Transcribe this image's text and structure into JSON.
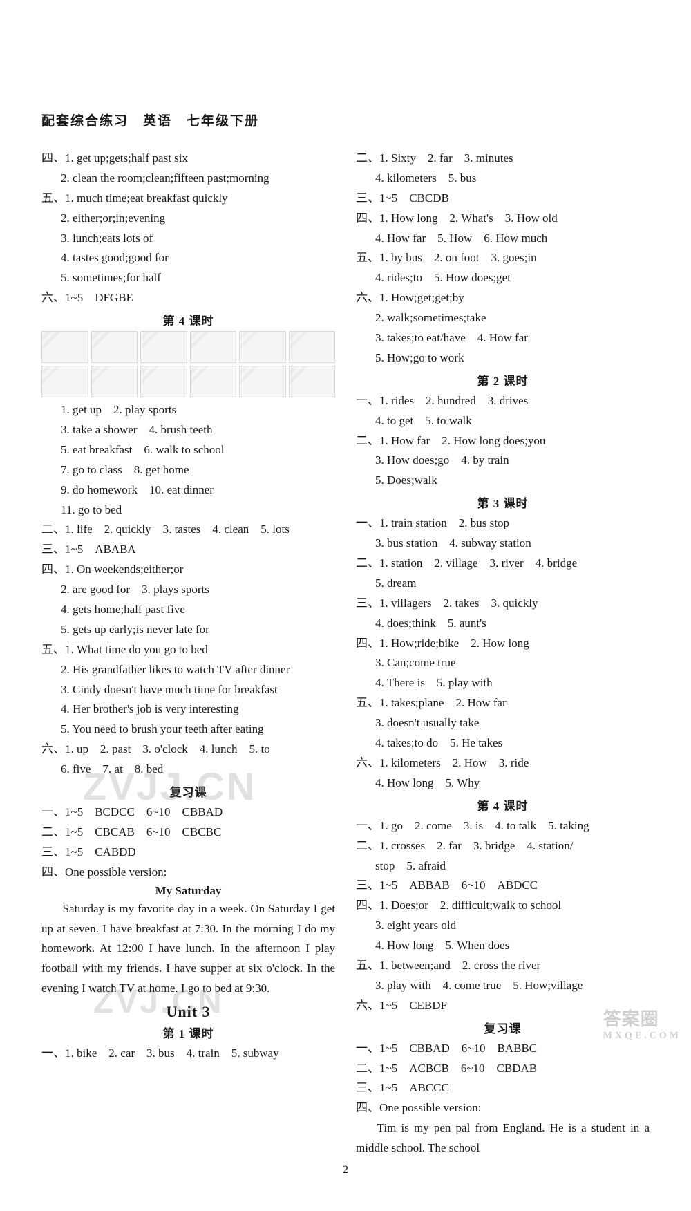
{
  "header": "配套综合练习　英语　七年级下册",
  "pageNumber": "2",
  "watermarks": {
    "wm1": "ZVJJ.CN",
    "wm2": "ZVJ.CN",
    "wm3": "答案圈",
    "wm3sub": "MXQE.COM"
  },
  "left": [
    {
      "cls": "line",
      "t": "四、1. get up;gets;half past six"
    },
    {
      "cls": "line indent1",
      "t": "2. clean the room;clean;fifteen past;morning"
    },
    {
      "cls": "line",
      "t": "五、1. much time;eat breakfast quickly"
    },
    {
      "cls": "line indent1",
      "t": "2. either;or;in;evening"
    },
    {
      "cls": "line indent1",
      "t": "3. lunch;eats lots of"
    },
    {
      "cls": "line indent1",
      "t": "4. tastes good;good for"
    },
    {
      "cls": "line indent1",
      "t": "5. sometimes;for half"
    },
    {
      "cls": "line",
      "t": "六、1~5　DFGBE"
    },
    {
      "cls": "section-heading-sm",
      "t": "第 4 课时"
    },
    {
      "cls": "images-row",
      "t": "__IMGROW__"
    },
    {
      "cls": "images-row",
      "t": "__IMGROW__"
    },
    {
      "cls": "line indent1",
      "t": "1. get up　2. play sports"
    },
    {
      "cls": "line indent1",
      "t": "3. take a shower　4. brush teeth"
    },
    {
      "cls": "line indent1",
      "t": "5. eat breakfast　6. walk to school"
    },
    {
      "cls": "line indent1",
      "t": "7. go to class　8. get home"
    },
    {
      "cls": "line indent1",
      "t": "9. do homework　10. eat dinner"
    },
    {
      "cls": "line indent1",
      "t": "11. go to bed"
    },
    {
      "cls": "line",
      "t": "二、1. life　2. quickly　3. tastes　4. clean　5. lots"
    },
    {
      "cls": "line",
      "t": "三、1~5　ABABA"
    },
    {
      "cls": "line",
      "t": "四、1. On weekends;either;or"
    },
    {
      "cls": "line indent1",
      "t": "2. are good for　3. plays sports"
    },
    {
      "cls": "line indent1",
      "t": "4. gets home;half past five"
    },
    {
      "cls": "line indent1",
      "t": "5. gets up early;is never late for"
    },
    {
      "cls": "line",
      "t": "五、1. What time do you go to bed"
    },
    {
      "cls": "line indent1",
      "t": "2. His grandfather likes to watch TV after dinner"
    },
    {
      "cls": "line indent1",
      "t": "3. Cindy doesn't have much time for breakfast"
    },
    {
      "cls": "line indent1",
      "t": "4. Her brother's job is very interesting"
    },
    {
      "cls": "line indent1",
      "t": "5. You need to brush your teeth after eating"
    },
    {
      "cls": "line",
      "t": "六、1. up　2. past　3. o'clock　4. lunch　5. to"
    },
    {
      "cls": "line indent1",
      "t": "6. five　7. at　8. bed"
    },
    {
      "cls": "section-heading-sm",
      "t": "复习课"
    },
    {
      "cls": "line",
      "t": "一、1~5　BCDCC　6~10　CBBAD"
    },
    {
      "cls": "line",
      "t": "二、1~5　CBCAB　6~10　CBCBC"
    },
    {
      "cls": "line",
      "t": "三、1~5　CABDD"
    },
    {
      "cls": "line",
      "t": "四、One possible version:"
    },
    {
      "cls": "essay-title",
      "t": "My Saturday"
    },
    {
      "cls": "essay",
      "t": "Saturday is my favorite day in a week. On Saturday I get up at seven. I have breakfast at 7:30. In the morning I do my homework. At 12:00 I have lunch. In the afternoon I play football with my friends. I have supper at six o'clock. In the evening I watch TV at home. I go to bed at 9:30."
    },
    {
      "cls": "section-heading-lg",
      "t": "Unit 3"
    },
    {
      "cls": "section-heading-sm",
      "t": "第 1 课时"
    },
    {
      "cls": "line",
      "t": "一、1. bike　2. car　3. bus　4. train　5. subway"
    }
  ],
  "right": [
    {
      "cls": "line",
      "t": "二、1. Sixty　2. far　3. minutes"
    },
    {
      "cls": "line indent1",
      "t": "4. kilometers　5. bus"
    },
    {
      "cls": "line",
      "t": "三、1~5　CBCDB"
    },
    {
      "cls": "line",
      "t": "四、1. How long　2. What's　3. How old"
    },
    {
      "cls": "line indent1",
      "t": "4. How far　5. How　6. How much"
    },
    {
      "cls": "line",
      "t": "五、1. by bus　2. on foot　3. goes;in"
    },
    {
      "cls": "line indent1",
      "t": "4. rides;to　5. How does;get"
    },
    {
      "cls": "line",
      "t": "六、1. How;get;get;by"
    },
    {
      "cls": "line indent1",
      "t": "2. walk;sometimes;take"
    },
    {
      "cls": "line indent1",
      "t": "3. takes;to eat/have　4. How far"
    },
    {
      "cls": "line indent1",
      "t": "5. How;go to work"
    },
    {
      "cls": "section-heading-sm",
      "t": "第 2 课时"
    },
    {
      "cls": "line",
      "t": "一、1. rides　2. hundred　3. drives"
    },
    {
      "cls": "line indent1",
      "t": "4. to get　5. to walk"
    },
    {
      "cls": "line",
      "t": "二、1. How far　2. How long does;you"
    },
    {
      "cls": "line indent1",
      "t": "3. How does;go　4. by train"
    },
    {
      "cls": "line indent1",
      "t": "5. Does;walk"
    },
    {
      "cls": "section-heading-sm",
      "t": "第 3 课时"
    },
    {
      "cls": "line",
      "t": "一、1. train station　2. bus stop"
    },
    {
      "cls": "line indent1",
      "t": "3. bus station　4. subway station"
    },
    {
      "cls": "line",
      "t": "二、1. station　2. village　3. river　4. bridge"
    },
    {
      "cls": "line indent1",
      "t": "5. dream"
    },
    {
      "cls": "line",
      "t": "三、1. villagers　2. takes　3. quickly"
    },
    {
      "cls": "line indent1",
      "t": "4. does;think　5. aunt's"
    },
    {
      "cls": "line",
      "t": "四、1. How;ride;bike　2. How long"
    },
    {
      "cls": "line indent1",
      "t": "3. Can;come true"
    },
    {
      "cls": "line indent1",
      "t": "4. There is　5. play with"
    },
    {
      "cls": "line",
      "t": "五、1. takes;plane　2. How far"
    },
    {
      "cls": "line indent1",
      "t": "3. doesn't usually take"
    },
    {
      "cls": "line indent1",
      "t": "4. takes;to do　5. He takes"
    },
    {
      "cls": "line",
      "t": "六、1. kilometers　2. How　3. ride"
    },
    {
      "cls": "line indent1",
      "t": "4. How long　5. Why"
    },
    {
      "cls": "section-heading-sm",
      "t": "第 4 课时"
    },
    {
      "cls": "line",
      "t": "一、1. go　2. come　3. is　4. to talk　5. taking"
    },
    {
      "cls": "line",
      "t": "二、1. crosses　2. far　3. bridge　4. station/"
    },
    {
      "cls": "line indent1",
      "t": "stop　5. afraid"
    },
    {
      "cls": "line",
      "t": "三、1~5　ABBAB　6~10　ABDCC"
    },
    {
      "cls": "line",
      "t": "四、1. Does;or　2. difficult;walk to school"
    },
    {
      "cls": "line indent1",
      "t": "3. eight years old"
    },
    {
      "cls": "line indent1",
      "t": "4. How long　5. When does"
    },
    {
      "cls": "line",
      "t": "五、1. between;and　2. cross the river"
    },
    {
      "cls": "line indent1",
      "t": "3. play with　4. come true　5. How;village"
    },
    {
      "cls": "line",
      "t": "六、1~5　CEBDF"
    },
    {
      "cls": "section-heading-sm",
      "t": "复习课"
    },
    {
      "cls": "line",
      "t": "一、1~5　CBBAD　6~10　BABBC"
    },
    {
      "cls": "line",
      "t": "二、1~5　ACBCB　6~10　CBDAB"
    },
    {
      "cls": "line",
      "t": "三、1~5　ABCCC"
    },
    {
      "cls": "line",
      "t": "四、One possible version:"
    },
    {
      "cls": "essay",
      "t": "Tim is my pen pal from England. He is a student in a middle school. The school"
    }
  ]
}
